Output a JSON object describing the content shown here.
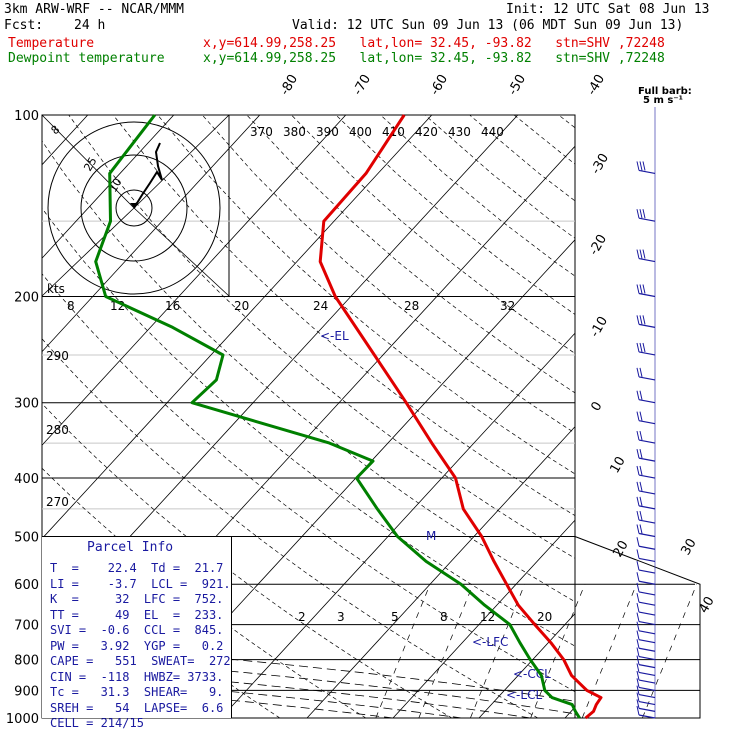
{
  "header": {
    "model": "3km ARW-WRF -- NCAR/MMM",
    "init": "Init: 12 UTC Sat 08 Jun 13",
    "fcst_label": "Fcst:",
    "fcst_value": "24 h",
    "valid": "Valid: 12 UTC Sun 09 Jun 13 (06 MDT Sun 09 Jun 13)",
    "temp_label": "Temperature",
    "dew_label": "Dewpoint temperature",
    "temp_loc": "x,y=614.99,258.25   lat,lon= 32.45, -93.82   stn=SHV ,72248",
    "dew_loc": "x,y=614.99,258.25   lat,lon= 32.45, -93.82   stn=SHV ,72248",
    "barb_title": "Full barb:",
    "barb_units": "5 m s⁻¹"
  },
  "colors": {
    "temperature": "#e00000",
    "dewpoint": "#008000",
    "text_blue": "#1a1aa0"
  },
  "chart_data": {
    "type": "line",
    "x_axis": "temperature (C), skewed",
    "y_axis": "pressure (hPa), log scale",
    "pressure_levels": [
      100,
      200,
      300,
      400,
      500,
      600,
      700,
      800,
      900,
      1000
    ],
    "pressure_labels": [
      "100",
      "200",
      "300",
      "400",
      "500",
      "600",
      "700",
      "800",
      "900",
      "1000"
    ],
    "isotherm_labels": [
      "-80",
      "-70",
      "-60",
      "-50",
      "-40",
      "-30",
      "-20",
      "-10",
      "0",
      "10",
      "20",
      "30",
      "40"
    ],
    "theta_labels": [
      "370",
      "380",
      "390",
      "400",
      "410",
      "420",
      "430",
      "440"
    ],
    "theta_e_labels": [
      "290",
      "280",
      "270"
    ],
    "hodo_speed_labels": [
      "kts",
      "8",
      "12",
      "16",
      "20",
      "24",
      "28",
      "32"
    ],
    "mixing_ratio_labels": [
      "2",
      "3",
      "5",
      "8",
      "12",
      "20"
    ],
    "annotations": [
      "<-EL",
      "M",
      "<-LFC",
      "<-CCL",
      "<-LCL"
    ],
    "hodograph_labels": [
      "8",
      "25",
      "10"
    ],
    "series": [
      {
        "name": "Temperature",
        "color": "#e00000",
        "points": [
          [
            1000,
            22.4
          ],
          [
            975,
            22.6
          ],
          [
            950,
            22.2
          ],
          [
            925,
            22.0
          ],
          [
            900,
            19.6
          ],
          [
            850,
            16.2
          ],
          [
            800,
            13.6
          ],
          [
            750,
            10.3
          ],
          [
            700,
            6.5
          ],
          [
            650,
            2.5
          ],
          [
            600,
            -1.1
          ],
          [
            550,
            -5.0
          ],
          [
            500,
            -9.1
          ],
          [
            450,
            -14.2
          ],
          [
            400,
            -18.4
          ],
          [
            350,
            -24.9
          ],
          [
            300,
            -32.2
          ],
          [
            250,
            -41.0
          ],
          [
            200,
            -51.8
          ],
          [
            175,
            -57.3
          ],
          [
            150,
            -61.2
          ],
          [
            125,
            -61.4
          ],
          [
            100,
            -63.2
          ]
        ]
      },
      {
        "name": "Dewpoint temperature",
        "color": "#008000",
        "points": [
          [
            1000,
            21.7
          ],
          [
            975,
            20.5
          ],
          [
            950,
            19.4
          ],
          [
            925,
            16.3
          ],
          [
            900,
            14.7
          ],
          [
            850,
            12.7
          ],
          [
            800,
            9.7
          ],
          [
            750,
            6.7
          ],
          [
            700,
            3.6
          ],
          [
            650,
            -1.4
          ],
          [
            600,
            -6.4
          ],
          [
            550,
            -12.9
          ],
          [
            500,
            -18.9
          ],
          [
            450,
            -24.2
          ],
          [
            400,
            -29.9
          ],
          [
            375,
            -29.8
          ],
          [
            350,
            -36.8
          ],
          [
            300,
            -57.1
          ],
          [
            275,
            -56.7
          ],
          [
            250,
            -58.6
          ],
          [
            225,
            -67.4
          ],
          [
            200,
            -78.5
          ],
          [
            175,
            -83.4
          ],
          [
            150,
            -86.0
          ],
          [
            125,
            -91.2
          ],
          [
            100,
            -92.2
          ]
        ]
      }
    ]
  },
  "parcel_info": {
    "title": "Parcel Info",
    "rows": [
      "T  =    22.4  Td =  21.7",
      "LI =    -3.7  LCL =  921.",
      "K  =     32  LFC =  752.",
      "TT =     49  EL  =  233.",
      "SVI =  -0.6  CCL =  845.",
      "PW =   3.92  YGP =   0.2",
      "CAPE =   551  SWEAT=  272",
      "CIN =  -118  HWBZ= 3733.",
      "Tc =   31.3  SHEAR=   9.",
      "SREH =   54  LAPSE=  6.6",
      "CELL = 214/15"
    ]
  }
}
